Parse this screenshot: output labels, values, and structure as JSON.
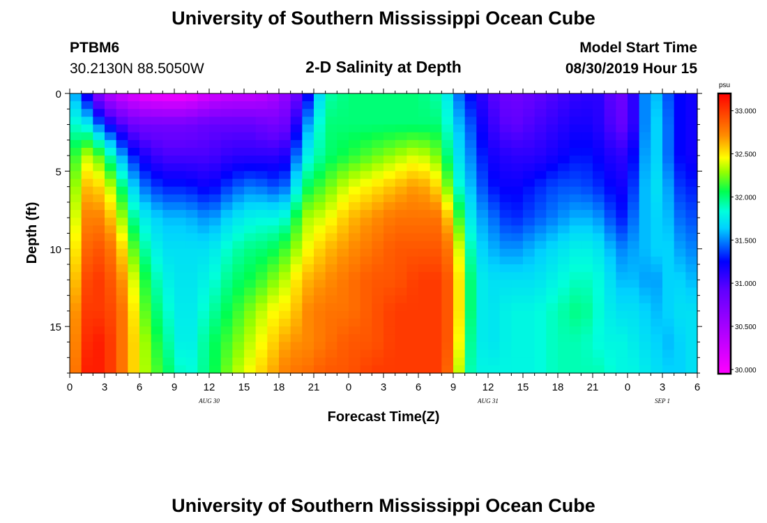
{
  "header": {
    "title": "University of Southern Mississippi Ocean Cube",
    "station_id": "PTBM6",
    "station_coords": "30.2130N 88.5050W",
    "plot_title": "2-D Salinity at Depth",
    "model_start_label": "Model Start Time",
    "model_start_value": "08/30/2019 Hour 15"
  },
  "footer": {
    "title": "University of Southern Mississippi Ocean Cube"
  },
  "chart_data": {
    "type": "heatmap",
    "title": "2-D Salinity at Depth",
    "xlabel": "Forecast Time(Z)",
    "ylabel": "Depth (ft)",
    "x_tick_labels": [
      "0",
      "3",
      "6",
      "9",
      "12",
      "15",
      "18",
      "21",
      "0",
      "3",
      "6",
      "9",
      "12",
      "15",
      "18",
      "21",
      "0",
      "3",
      "6"
    ],
    "x_range_hours": [
      0,
      54
    ],
    "date_labels": [
      {
        "text": "AUG 30",
        "hour": 12
      },
      {
        "text": "AUG 31",
        "hour": 36
      },
      {
        "text": "SEP 1",
        "hour": 51
      }
    ],
    "y_ticks": [
      0,
      5,
      10,
      15
    ],
    "y_tick_labels": [
      "0",
      "5",
      "10",
      "15"
    ],
    "ylim": [
      0,
      18
    ],
    "y_inverted": true,
    "colorbar": {
      "unit": "psu",
      "min": 29.95,
      "max": 33.2,
      "tick_values": [
        30.0,
        30.5,
        31.0,
        31.5,
        32.0,
        32.5,
        33.0
      ],
      "tick_labels": [
        "30.000",
        "30.500",
        "31.000",
        "31.500",
        "32.000",
        "32.500",
        "33.000"
      ]
    },
    "grid": {
      "time_step_hours": 1,
      "depth_step_ft": 0.5,
      "time_knots_hours": [
        0,
        1,
        2,
        3,
        4,
        5,
        6,
        8,
        10,
        12,
        14,
        16,
        17,
        18,
        19,
        20,
        22,
        24,
        26,
        28,
        30,
        32,
        33,
        34,
        35,
        36,
        38,
        40,
        42,
        44,
        46,
        47,
        48,
        49,
        50,
        51,
        52,
        53,
        54
      ],
      "depth_knots_ft": [
        0,
        2,
        4,
        6,
        8,
        10,
        12,
        14,
        16,
        18
      ],
      "salinity_psu": [
        [
          31.7,
          31.8,
          31.9,
          32.0,
          32.1,
          32.2,
          32.3,
          32.4,
          32.5,
          32.5
        ],
        [
          31.4,
          31.9,
          32.4,
          32.6,
          32.7,
          32.8,
          32.9,
          33.0,
          33.0,
          33.1
        ],
        [
          30.9,
          31.6,
          32.3,
          32.6,
          32.8,
          32.9,
          33.0,
          33.0,
          33.1,
          33.1
        ],
        [
          30.5,
          31.3,
          32.1,
          32.5,
          32.7,
          32.9,
          33.0,
          33.0,
          33.1,
          33.1
        ],
        [
          30.3,
          31.1,
          31.7,
          32.2,
          32.5,
          32.7,
          32.8,
          32.9,
          32.9,
          32.9
        ],
        [
          30.2,
          30.9,
          31.4,
          31.8,
          32.1,
          32.4,
          32.6,
          32.7,
          32.7,
          32.7
        ],
        [
          30.1,
          30.8,
          31.2,
          31.5,
          31.8,
          32.0,
          32.2,
          32.3,
          32.4,
          32.4
        ],
        [
          30.0,
          30.8,
          31.0,
          31.3,
          31.6,
          31.7,
          31.8,
          31.9,
          32.0,
          32.1
        ],
        [
          30.0,
          30.8,
          31.0,
          31.3,
          31.6,
          31.7,
          31.7,
          31.7,
          31.7,
          31.8
        ],
        [
          30.2,
          30.9,
          31.0,
          31.2,
          31.5,
          31.7,
          31.8,
          31.9,
          32.0,
          32.0
        ],
        [
          30.3,
          30.9,
          31.1,
          31.4,
          31.7,
          31.9,
          32.0,
          32.1,
          32.2,
          32.3
        ],
        [
          30.3,
          30.9,
          31.1,
          31.5,
          31.8,
          32.0,
          32.1,
          32.3,
          32.4,
          32.5
        ],
        [
          30.4,
          30.8,
          31.1,
          31.4,
          31.8,
          32.0,
          32.2,
          32.4,
          32.5,
          32.6
        ],
        [
          30.5,
          30.8,
          31.1,
          31.4,
          31.8,
          32.1,
          32.3,
          32.5,
          32.6,
          32.7
        ],
        [
          30.7,
          30.9,
          31.2,
          31.5,
          31.9,
          32.2,
          32.4,
          32.5,
          32.7,
          32.8
        ],
        [
          31.0,
          31.4,
          31.7,
          32.0,
          32.3,
          32.4,
          32.6,
          32.7,
          32.7,
          32.8
        ],
        [
          31.9,
          32.0,
          32.0,
          32.2,
          32.4,
          32.6,
          32.7,
          32.8,
          32.8,
          32.9
        ],
        [
          32.0,
          32.0,
          32.1,
          32.4,
          32.6,
          32.7,
          32.8,
          32.8,
          32.9,
          32.9
        ],
        [
          32.0,
          32.0,
          32.2,
          32.5,
          32.7,
          32.8,
          32.9,
          32.9,
          32.9,
          33.0
        ],
        [
          32.0,
          32.0,
          32.3,
          32.6,
          32.8,
          32.9,
          32.9,
          33.0,
          33.0,
          33.0
        ],
        [
          32.0,
          32.0,
          32.4,
          32.7,
          32.8,
          32.9,
          33.0,
          33.0,
          33.0,
          33.0
        ],
        [
          31.9,
          32.0,
          32.2,
          32.5,
          32.8,
          32.9,
          33.0,
          33.0,
          33.0,
          33.0
        ],
        [
          31.6,
          31.7,
          31.8,
          32.0,
          32.4,
          32.7,
          32.8,
          32.8,
          32.8,
          32.7
        ],
        [
          31.3,
          31.5,
          31.6,
          31.7,
          31.9,
          32.1,
          32.2,
          32.2,
          32.1,
          32.0
        ],
        [
          31.2,
          31.3,
          31.4,
          31.5,
          31.6,
          31.7,
          31.8,
          31.8,
          31.8,
          31.8
        ],
        [
          31.0,
          31.1,
          31.2,
          31.3,
          31.5,
          31.6,
          31.7,
          31.7,
          31.7,
          31.8
        ],
        [
          30.8,
          30.9,
          31.1,
          31.2,
          31.3,
          31.5,
          31.7,
          31.8,
          31.8,
          31.8
        ],
        [
          30.9,
          31.0,
          31.1,
          31.3,
          31.4,
          31.6,
          31.7,
          31.8,
          31.8,
          31.8
        ],
        [
          31.0,
          31.1,
          31.2,
          31.4,
          31.5,
          31.7,
          31.8,
          31.9,
          31.9,
          31.9
        ],
        [
          31.1,
          31.2,
          31.3,
          31.4,
          31.6,
          31.8,
          31.9,
          32.0,
          31.9,
          31.9
        ],
        [
          31.1,
          31.1,
          31.2,
          31.3,
          31.5,
          31.7,
          31.8,
          31.8,
          31.8,
          31.9
        ],
        [
          30.8,
          30.9,
          31.1,
          31.2,
          31.3,
          31.5,
          31.6,
          31.7,
          31.8,
          31.8
        ],
        [
          30.9,
          30.9,
          31.1,
          31.2,
          31.3,
          31.5,
          31.6,
          31.7,
          31.8,
          31.8
        ],
        [
          31.3,
          31.3,
          31.4,
          31.5,
          31.6,
          31.6,
          31.6,
          31.7,
          31.7,
          31.8
        ],
        [
          31.7,
          31.7,
          31.7,
          31.7,
          31.6,
          31.6,
          31.5,
          31.6,
          31.7,
          31.7
        ],
        [
          31.5,
          31.6,
          31.6,
          31.7,
          31.7,
          31.7,
          31.6,
          31.6,
          31.6,
          31.7
        ],
        [
          31.3,
          31.3,
          31.3,
          31.4,
          31.5,
          31.6,
          31.7,
          31.7,
          31.6,
          31.6
        ],
        [
          31.2,
          31.2,
          31.2,
          31.3,
          31.4,
          31.5,
          31.6,
          31.7,
          31.7,
          31.7
        ],
        [
          31.2,
          31.2,
          31.2,
          31.3,
          31.4,
          31.5,
          31.6,
          31.7,
          31.7,
          31.7
        ]
      ]
    }
  }
}
